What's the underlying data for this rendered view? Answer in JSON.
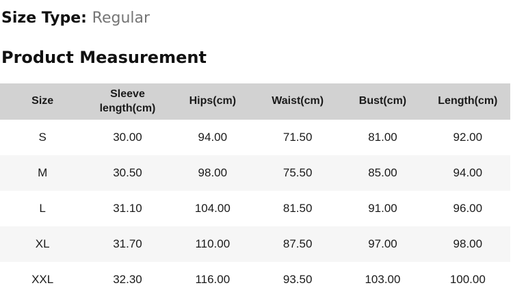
{
  "header": {
    "size_type_label": "Size Type:",
    "size_type_value": "Regular",
    "section_title": "Product Measurement"
  },
  "table": {
    "columns": [
      "Size",
      "Sleeve length(cm)",
      "Hips(cm)",
      "Waist(cm)",
      "Bust(cm)",
      "Length(cm)"
    ],
    "rows": [
      [
        "S",
        "30.00",
        "94.00",
        "71.50",
        "81.00",
        "92.00"
      ],
      [
        "M",
        "30.50",
        "98.00",
        "75.50",
        "85.00",
        "94.00"
      ],
      [
        "L",
        "31.10",
        "104.00",
        "81.50",
        "91.00",
        "96.00"
      ],
      [
        "XL",
        "31.70",
        "110.00",
        "87.50",
        "97.00",
        "98.00"
      ],
      [
        "XXL",
        "32.30",
        "116.00",
        "93.50",
        "103.00",
        "100.00"
      ]
    ]
  },
  "colors": {
    "table_header_bg": "#d2d2d2",
    "row_stripe_bg": "#f6f6f6",
    "muted_text": "#757575",
    "text": "#1a1a1a"
  }
}
